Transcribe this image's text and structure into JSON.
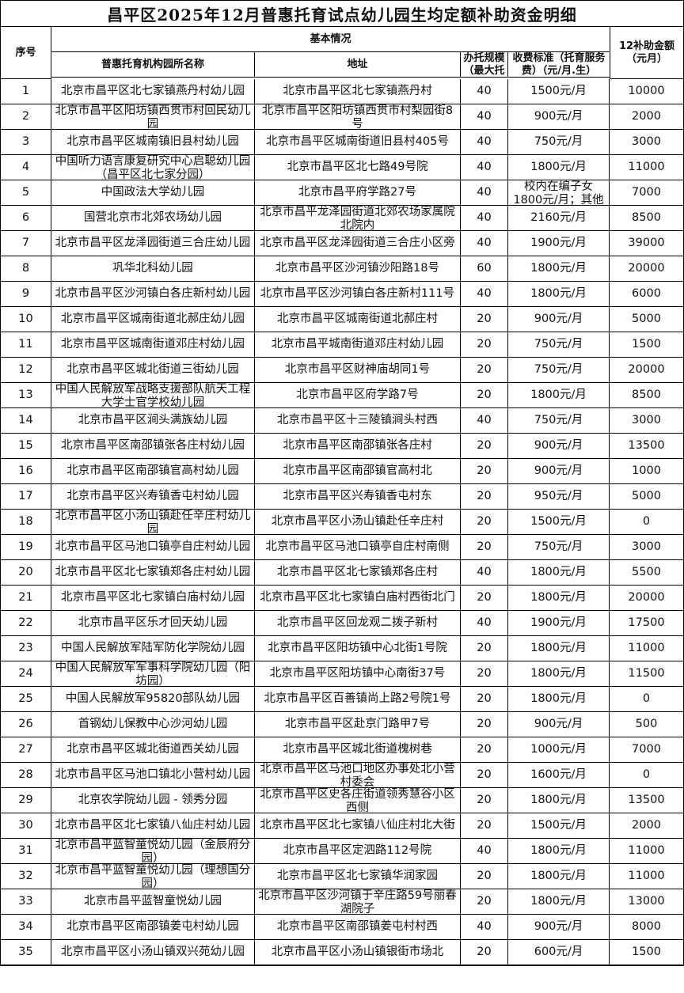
{
  "title": "昌平区2025年12月普惠托育试点幼儿园生均定额补助资金明细",
  "headers": {
    "index": "序号",
    "basic_info": "基本情况",
    "name": "普惠托育机构园所名称",
    "address": "地址",
    "scale": "办托规模（最大托",
    "fee": "收费标准（托育服务费）（元/月.生）",
    "subsidy": "12补助金额（元月）"
  },
  "rows": [
    [
      "1",
      "北京市昌平区北七家镇燕丹村幼儿园",
      "北京市昌平区北七家镇燕丹村",
      "40",
      "1500元/月",
      "10000"
    ],
    [
      "2",
      "北京市昌平区阳坊镇西贯市村回民幼儿园",
      "北京市昌平区阳坊镇西贯市村梨园街8号",
      "40",
      "900元/月",
      "2000"
    ],
    [
      "3",
      "北京市昌平区城南镇旧县村幼儿园",
      "北京市昌平区城南街道旧县村405号",
      "40",
      "750元/月",
      "3000"
    ],
    [
      "4",
      "中国听力语言康复研究中心启聪幼儿园（昌平区北七家分园）",
      "北京市昌平区北七路49号院",
      "40",
      "1800元/月",
      "11000"
    ],
    [
      "5",
      "中国政法大学幼儿园",
      "北京市昌平府学路27号",
      "40",
      "校内在编子女1800元/月；其他",
      "7000"
    ],
    [
      "6",
      "国营北京市北郊农场幼儿园",
      "北京市昌平龙泽园街道北郊农场家属院北院内",
      "40",
      "2160元/月",
      "8500"
    ],
    [
      "7",
      "北京市昌平区龙泽园街道三合庄幼儿园",
      "北京市昌平区龙泽园街道三合庄小区旁",
      "40",
      "1900元/月",
      "39000"
    ],
    [
      "8",
      "巩华北科幼儿园",
      "北京市昌平区沙河镇沙阳路18号",
      "60",
      "1800元/月",
      "20000"
    ],
    [
      "9",
      "北京市昌平区沙河镇白各庄新村幼儿园",
      "北京市昌平区沙河镇白各庄新村111号",
      "40",
      "1800元/月",
      "6000"
    ],
    [
      "10",
      "北京市昌平区城南街道北郝庄幼儿园",
      "北京市昌平区城南街道北郝庄村",
      "20",
      "900元/月",
      "5000"
    ],
    [
      "11",
      "北京市昌平区城南街道邓庄村幼儿园",
      "北京市昌平城南街道邓庄村幼儿园",
      "20",
      "750元/月",
      "1500"
    ],
    [
      "12",
      "北京市昌平区城北街道三街幼儿园",
      "北京市昌平区财神庙胡同1号",
      "20",
      "750元/月",
      "20000"
    ],
    [
      "13",
      "中国人民解放军战略支援部队航天工程大学士官学校幼儿园",
      "北京市昌平区府学路7号",
      "20",
      "1800元/月",
      "8500"
    ],
    [
      "14",
      "北京市昌平区涧头满族幼儿园",
      "北京市昌平区十三陵镇涧头村西",
      "40",
      "750元/月",
      "3000"
    ],
    [
      "15",
      "北京市昌平区南邵镇张各庄村幼儿园",
      "北京市昌平区南邵镇张各庄村",
      "20",
      "900元/月",
      "13500"
    ],
    [
      "16",
      "北京市昌平区南邵镇官高村幼儿园",
      "北京市昌平区南邵镇官高村北",
      "20",
      "900元/月",
      "1000"
    ],
    [
      "17",
      "北京市昌平区兴寿镇香屯村幼儿园",
      "北京市昌平区兴寿镇香屯村东",
      "20",
      "950元/月",
      "5000"
    ],
    [
      "18",
      "北京市昌平区小汤山镇赴任辛庄村幼儿园",
      "北京市昌平区小汤山镇赴任辛庄村",
      "20",
      "1500元/月",
      "0"
    ],
    [
      "19",
      "北京市昌平区马池口镇亭自庄村幼儿园",
      "北京市昌平区马池口镇亭自庄村南侧",
      "20",
      "750元/月",
      "3000"
    ],
    [
      "20",
      "北京市昌平区北七家镇郑各庄村幼儿园",
      "北京市昌平区北七家镇郑各庄村",
      "40",
      "1800元/月",
      "5500"
    ],
    [
      "21",
      "北京市昌平区北七家镇白庙村幼儿园",
      "北京市昌平区北七家镇白庙村西街北门",
      "20",
      "1800元/月",
      "20000"
    ],
    [
      "22",
      "北京市昌平区乐才回天幼儿园",
      "北京市昌平区回龙观二拨子新村",
      "40",
      "1900元/月",
      "17500"
    ],
    [
      "23",
      "中国人民解放军陆军防化学院幼儿园",
      "北京市昌平区阳坊镇中心北街1号院",
      "20",
      "1800元/月",
      "11000"
    ],
    [
      "24",
      "中国人民解放军军事科学院幼儿园（阳坊园）",
      "北京市昌平区阳坊镇中心南街37号",
      "20",
      "1800元/月",
      "11500"
    ],
    [
      "25",
      "中国人民解放军95820部队幼儿园",
      "北京市昌平区百善镇尚上路2号院1号",
      "20",
      "1800元/月",
      "0"
    ],
    [
      "26",
      "首钢幼儿保教中心沙河幼儿园",
      "北京市昌平区赴京门路甲7号",
      "20",
      "900元/月",
      "500"
    ],
    [
      "27",
      "北京市昌平区城北街道西关幼儿园",
      "北京市昌平区城北街道槐树巷",
      "20",
      "1000元/月",
      "7000"
    ],
    [
      "28",
      "北京市昌平区马池口镇北小营村幼儿园",
      "北京市昌平区马池口地区办事处北小营村委会",
      "20",
      "1600元/月",
      "0"
    ],
    [
      "29",
      "北京农学院幼儿园 - 领秀分园",
      "北京市昌平区史各庄街道领秀慧谷小区西侧",
      "20",
      "1800元/月",
      "13500"
    ],
    [
      "30",
      "北京市昌平区北七家镇八仙庄村幼儿园",
      "北京市昌平区北七家镇八仙庄村北大街",
      "20",
      "1500元/月",
      "2000"
    ],
    [
      "31",
      "北京市昌平蓝智童悦幼儿园（金辰府分园）",
      "北京市昌平区定泗路112号院",
      "40",
      "1800元/月",
      "11000"
    ],
    [
      "32",
      "北京市昌平蓝智童悦幼儿园（理想国分园）",
      "北京市昌平区北七家镇华润家园",
      "20",
      "1800元/月",
      "11000"
    ],
    [
      "33",
      "北京市昌平蓝智童悦幼儿园",
      "北京市昌平区沙河镇于辛庄路59号丽春湖院子",
      "20",
      "1800元/月",
      "13000"
    ],
    [
      "34",
      "北京市昌平区南邵镇姜屯村幼儿园",
      "北京市昌平区南邵镇姜屯村村西",
      "40",
      "900元/月",
      "8000"
    ],
    [
      "35",
      "北京市昌平区小汤山镇双兴苑幼儿园",
      "北京市昌平区小汤山镇银街市场北",
      "20",
      "600元/月",
      "1500"
    ]
  ]
}
